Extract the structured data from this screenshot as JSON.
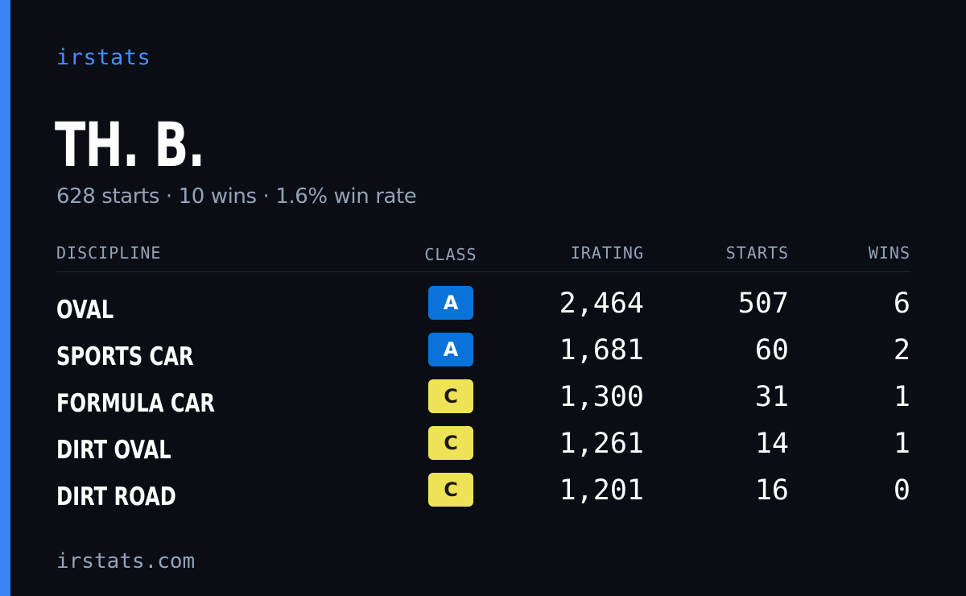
{
  "brand": "irstats",
  "driver": {
    "name": "TH. B.",
    "summary": "628 starts · 10 wins · 1.6% win rate"
  },
  "table": {
    "columns": {
      "discipline": "DISCIPLINE",
      "class": "CLASS",
      "irating": "IRATING",
      "starts": "STARTS",
      "wins": "WINS"
    },
    "rows": [
      {
        "discipline": "OVAL",
        "class": "A",
        "class_color": "#0a73d9",
        "class_text_color": "#ffffff",
        "irating": "2,464",
        "starts": "507",
        "wins": "6"
      },
      {
        "discipline": "SPORTS CAR",
        "class": "A",
        "class_color": "#0a73d9",
        "class_text_color": "#ffffff",
        "irating": "1,681",
        "starts": "60",
        "wins": "2"
      },
      {
        "discipline": "FORMULA CAR",
        "class": "C",
        "class_color": "#eee257",
        "class_text_color": "#1a1a1a",
        "irating": "1,300",
        "starts": "31",
        "wins": "1"
      },
      {
        "discipline": "DIRT OVAL",
        "class": "C",
        "class_color": "#eee257",
        "class_text_color": "#1a1a1a",
        "irating": "1,261",
        "starts": "14",
        "wins": "1"
      },
      {
        "discipline": "DIRT ROAD",
        "class": "C",
        "class_color": "#eee257",
        "class_text_color": "#1a1a1a",
        "irating": "1,201",
        "starts": "16",
        "wins": "0"
      }
    ]
  },
  "footer": "irstats.com",
  "colors": {
    "background": "#0a0d14",
    "accent": "#3b82f6",
    "muted_text": "#94a3b8"
  }
}
